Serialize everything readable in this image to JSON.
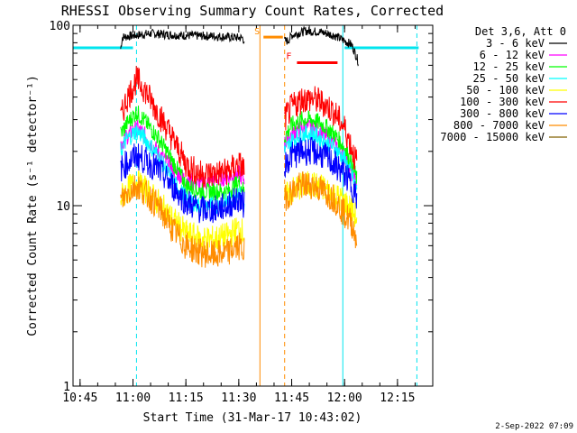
{
  "chart_data": {
    "type": "line",
    "title": "RHESSI Observing Summary Count Rates, Corrected",
    "xlabel": "Start Time (31-Mar-17 10:43:02)",
    "ylabel": "Corrected Count Rate (s⁻¹ detector⁻¹)",
    "yscale": "log",
    "ylim": [
      1,
      100
    ],
    "xlim_minutes": [
      0,
      102
    ],
    "x_ticks": [
      {
        "label": "10:45",
        "t": 2
      },
      {
        "label": "11:00",
        "t": 17
      },
      {
        "label": "11:15",
        "t": 32
      },
      {
        "label": "11:30",
        "t": 47
      },
      {
        "label": "11:45",
        "t": 62
      },
      {
        "label": "12:00",
        "t": 77
      },
      {
        "label": "12:15",
        "t": 92
      }
    ],
    "y_ticks": [
      {
        "label": "1",
        "v": 1
      },
      {
        "label": "10",
        "v": 10
      },
      {
        "label": "100",
        "v": 100
      }
    ],
    "legend_header": "Det 3,6, Att 0",
    "legend_position": "right",
    "series": [
      {
        "name": "3 - 6 keV",
        "color": "#000000",
        "profile": [
          [
            13.5,
            74
          ],
          [
            14,
            86
          ],
          [
            18,
            88
          ],
          [
            22,
            90
          ],
          [
            30,
            88
          ],
          [
            40,
            87
          ],
          [
            48,
            85
          ],
          [
            49,
            80
          ],
          [
            61,
            82
          ],
          [
            62,
            88
          ],
          [
            66,
            93
          ],
          [
            70,
            92
          ],
          [
            74,
            88
          ],
          [
            76,
            84
          ],
          [
            79,
            78
          ],
          [
            80,
            70
          ],
          [
            81,
            62
          ]
        ]
      },
      {
        "name": "6 - 12 keV",
        "color": "#ff00ff",
        "profile": [
          [
            13.5,
            22
          ],
          [
            15,
            24
          ],
          [
            18,
            27
          ],
          [
            20,
            25
          ],
          [
            24,
            20
          ],
          [
            28,
            16
          ],
          [
            32,
            14
          ],
          [
            36,
            13
          ],
          [
            40,
            14
          ],
          [
            44,
            14.5
          ],
          [
            47,
            15
          ],
          [
            48.5,
            14
          ],
          [
            60,
            22
          ],
          [
            62,
            25
          ],
          [
            65,
            27
          ],
          [
            68,
            27
          ],
          [
            71,
            25
          ],
          [
            74,
            22
          ],
          [
            77,
            19
          ],
          [
            79,
            15
          ],
          [
            80.5,
            13
          ]
        ]
      },
      {
        "name": "12 - 25 keV",
        "color": "#00ff00",
        "profile": [
          [
            13.5,
            25
          ],
          [
            15,
            28
          ],
          [
            18,
            33
          ],
          [
            20,
            30
          ],
          [
            24,
            24
          ],
          [
            28,
            18
          ],
          [
            32,
            13
          ],
          [
            36,
            12
          ],
          [
            40,
            12
          ],
          [
            44,
            12
          ],
          [
            47,
            13.5
          ],
          [
            48.5,
            12
          ],
          [
            60,
            24
          ],
          [
            62,
            28
          ],
          [
            65,
            30
          ],
          [
            68,
            30
          ],
          [
            71,
            28
          ],
          [
            74,
            25
          ],
          [
            77,
            21
          ],
          [
            79,
            17
          ],
          [
            80.5,
            14
          ]
        ]
      },
      {
        "name": "25 - 50 keV",
        "color": "#00ffff",
        "profile": [
          [
            13.5,
            20
          ],
          [
            15,
            23
          ],
          [
            18,
            26
          ],
          [
            20,
            24
          ],
          [
            24,
            19
          ],
          [
            28,
            14
          ],
          [
            32,
            11
          ],
          [
            36,
            10
          ],
          [
            40,
            10
          ],
          [
            44,
            10.5
          ],
          [
            47,
            12
          ],
          [
            48.5,
            10
          ],
          [
            60,
            20
          ],
          [
            62,
            23
          ],
          [
            65,
            25
          ],
          [
            68,
            25
          ],
          [
            71,
            23
          ],
          [
            74,
            21
          ],
          [
            77,
            18
          ],
          [
            79,
            15
          ],
          [
            80.5,
            12
          ]
        ]
      },
      {
        "name": "50 - 100 keV",
        "color": "#ffff00",
        "profile": [
          [
            13.5,
            11
          ],
          [
            15,
            12
          ],
          [
            18,
            13.5
          ],
          [
            20,
            12.5
          ],
          [
            24,
            10.5
          ],
          [
            28,
            8.5
          ],
          [
            32,
            7
          ],
          [
            36,
            6.5
          ],
          [
            40,
            6.5
          ],
          [
            44,
            6.8
          ],
          [
            47,
            7.5
          ],
          [
            48.5,
            7
          ],
          [
            60,
            11
          ],
          [
            62,
            12
          ],
          [
            65,
            13
          ],
          [
            68,
            13
          ],
          [
            71,
            12.5
          ],
          [
            74,
            11.5
          ],
          [
            77,
            10.5
          ],
          [
            79,
            9.5
          ],
          [
            80.5,
            8.5
          ]
        ]
      },
      {
        "name": "100 - 300 keV",
        "color": "#ff0000",
        "profile": [
          [
            13.5,
            30
          ],
          [
            15,
            38
          ],
          [
            18,
            50
          ],
          [
            20,
            45
          ],
          [
            24,
            33
          ],
          [
            28,
            24
          ],
          [
            32,
            17
          ],
          [
            36,
            15
          ],
          [
            40,
            15
          ],
          [
            44,
            15.5
          ],
          [
            47,
            17
          ],
          [
            48.5,
            16
          ],
          [
            60,
            30
          ],
          [
            62,
            35
          ],
          [
            65,
            39
          ],
          [
            68,
            39
          ],
          [
            71,
            37
          ],
          [
            74,
            33
          ],
          [
            77,
            27
          ],
          [
            79,
            21
          ],
          [
            80.5,
            17
          ]
        ]
      },
      {
        "name": "300 - 800 keV",
        "color": "#0000ff",
        "profile": [
          [
            13.5,
            16
          ],
          [
            15,
            17
          ],
          [
            18,
            19
          ],
          [
            20,
            18
          ],
          [
            24,
            16
          ],
          [
            28,
            13
          ],
          [
            32,
            10.5
          ],
          [
            36,
            9.5
          ],
          [
            40,
            9.5
          ],
          [
            44,
            10
          ],
          [
            47,
            11
          ],
          [
            48.5,
            10
          ],
          [
            60,
            17
          ],
          [
            62,
            19
          ],
          [
            65,
            20
          ],
          [
            68,
            20
          ],
          [
            71,
            19
          ],
          [
            74,
            17
          ],
          [
            77,
            15
          ],
          [
            79,
            13
          ],
          [
            80.5,
            11
          ]
        ]
      },
      {
        "name": "800 - 7000 keV",
        "color": "#ff8c00",
        "profile": [
          [
            13.5,
            10.5
          ],
          [
            15,
            11.5
          ],
          [
            18,
            13
          ],
          [
            20,
            12
          ],
          [
            24,
            10
          ],
          [
            28,
            7.5
          ],
          [
            32,
            6
          ],
          [
            36,
            5.5
          ],
          [
            40,
            5.3
          ],
          [
            44,
            5.5
          ],
          [
            47,
            6
          ],
          [
            48.5,
            5.5
          ],
          [
            60,
            11
          ],
          [
            62,
            12
          ],
          [
            65,
            13
          ],
          [
            68,
            13
          ],
          [
            71,
            12
          ],
          [
            74,
            11
          ],
          [
            77,
            9
          ],
          [
            79,
            8
          ],
          [
            80.5,
            6.5
          ]
        ]
      },
      {
        "name": "7000 - 15000 keV",
        "color": "#806000",
        "profile": []
      }
    ],
    "vertical_lines": [
      {
        "t": 0,
        "color": "#00e5ee",
        "dash": "solid"
      },
      {
        "t": 18,
        "color": "#00e5ee",
        "dash": "dashed"
      },
      {
        "t": 76.5,
        "color": "#00e5ee",
        "dash": "solid"
      },
      {
        "t": 97.5,
        "color": "#00e5ee",
        "dash": "dashed"
      },
      {
        "t": 53,
        "color": "#ff8c00",
        "dash": "solid"
      },
      {
        "t": 60,
        "color": "#ff8c00",
        "dash": "dashed"
      }
    ],
    "attenuator_segments": [
      {
        "t0": 0,
        "t1": 17,
        "v": 75,
        "color": "#00e5ee"
      },
      {
        "t0": 77,
        "t1": 98,
        "v": 75,
        "color": "#00e5ee"
      },
      {
        "t0": 54,
        "t1": 59.5,
        "v": 86,
        "color": "#ff8c00"
      },
      {
        "t0": 63.5,
        "t1": 75,
        "v": 62,
        "color": "#ff0000"
      }
    ],
    "flags": [
      {
        "text": "S",
        "t": 52.2,
        "v": 89,
        "color": "#ff8c00"
      },
      {
        "text": "F",
        "t": 61.2,
        "v": 65,
        "color": "#ff0000"
      }
    ],
    "footer_date": "2-Sep-2022 07:09"
  }
}
